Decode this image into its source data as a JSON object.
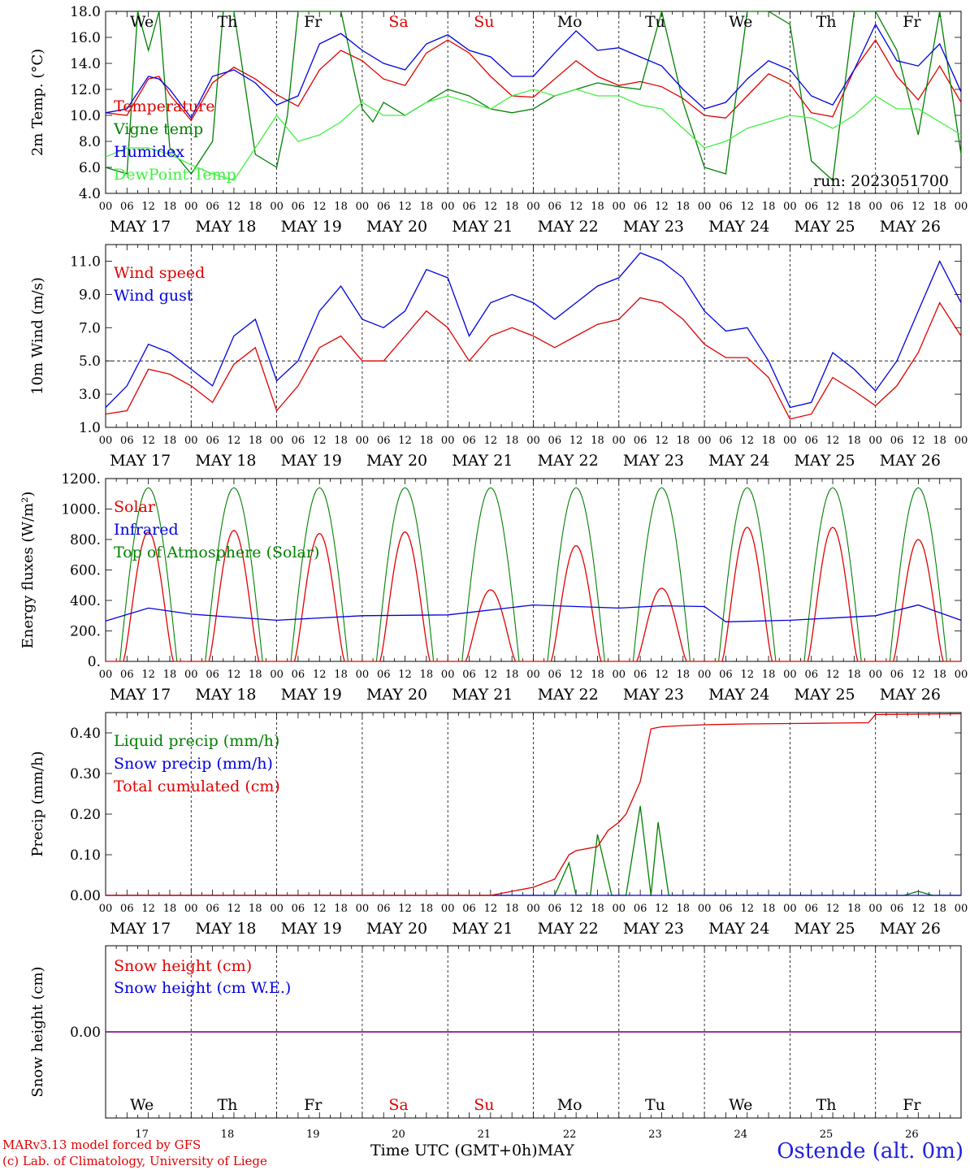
{
  "time_axis": {
    "hour_ticks": [
      "00",
      "06",
      "12",
      "18"
    ],
    "dates": [
      "MAY 17",
      "MAY 18",
      "MAY 19",
      "MAY 20",
      "MAY 21",
      "MAY 22",
      "MAY 23",
      "MAY 24",
      "MAY 25",
      "MAY 26"
    ],
    "weekdays": [
      "We",
      "Th",
      "Fr",
      "Sa",
      "Su",
      "Mo",
      "Tu",
      "We",
      "Th",
      "Fr"
    ],
    "weekday_colors": [
      "#000000",
      "#000000",
      "#000000",
      "#e00000",
      "#e00000",
      "#000000",
      "#000000",
      "#000000",
      "#000000",
      "#000000"
    ],
    "day_numbers": [
      "17",
      "18",
      "19",
      "20",
      "21",
      "22",
      "23",
      "24",
      "25",
      "26"
    ]
  },
  "footer": {
    "model_line": "MARv3.13 model forced by GFS",
    "lab_line": "(c) Lab. of Climatology, University of Liege",
    "time_label": "Time UTC (GMT+0h)",
    "month_label": "MAY",
    "station": "Ostende (alt. 0m)"
  },
  "chart_data": [
    {
      "type": "line",
      "ylabel": "2m Temp. (°C)",
      "ylim": [
        4,
        18
      ],
      "y_ticks": [
        "4.0",
        "6.0",
        "8.0",
        "10.0",
        "12.0",
        "14.0",
        "16.0",
        "18.0"
      ],
      "annotation": "run: 2023051700",
      "x_unit": "hours since 2023-05-17 00 UTC",
      "series": [
        {
          "name": "Temperature",
          "color": "#e00000",
          "x": [
            0,
            6,
            12,
            15,
            18,
            24,
            30,
            36,
            42,
            48,
            54,
            60,
            66,
            72,
            78,
            84,
            90,
            96,
            102,
            108,
            114,
            120,
            126,
            132,
            138,
            144,
            150,
            156,
            162,
            168,
            174,
            180,
            186,
            192,
            198,
            204,
            210,
            216,
            222,
            228,
            234,
            240
          ],
          "y": [
            10.2,
            10.0,
            12.8,
            13.0,
            11.6,
            9.6,
            12.5,
            13.7,
            12.8,
            11.6,
            10.7,
            13.5,
            15.0,
            14.2,
            12.8,
            12.3,
            14.8,
            15.8,
            14.8,
            13.0,
            11.5,
            11.4,
            12.8,
            14.2,
            13.0,
            12.3,
            12.6,
            12.2,
            11.3,
            10.0,
            9.8,
            11.5,
            13.2,
            12.4,
            10.2,
            9.9,
            13.5,
            15.8,
            13.0,
            11.2,
            13.8,
            11.0
          ]
        },
        {
          "name": "Vigne temp",
          "color": "#008000",
          "x": [
            0,
            6,
            9,
            12,
            15,
            18,
            24,
            30,
            33,
            36,
            42,
            48,
            51,
            54,
            57,
            60,
            66,
            72,
            75,
            78,
            84,
            90,
            96,
            102,
            108,
            114,
            120,
            126,
            132,
            138,
            144,
            150,
            156,
            162,
            168,
            174,
            180,
            186,
            192,
            198,
            204,
            210,
            216,
            222,
            228,
            234,
            240
          ],
          "y": [
            6.0,
            5.5,
            18.0,
            15.0,
            18.0,
            7.5,
            5.5,
            8.0,
            18.0,
            18.0,
            7.0,
            6.0,
            10.0,
            18.0,
            18.0,
            18.0,
            18.0,
            10.5,
            9.5,
            11.0,
            10.0,
            11.0,
            12.0,
            11.5,
            10.5,
            10.2,
            10.5,
            11.5,
            12.0,
            12.5,
            12.2,
            12.0,
            18.0,
            11.0,
            6.0,
            5.5,
            18.0,
            18.0,
            17.0,
            6.5,
            5.0,
            18.0,
            18.0,
            15.0,
            8.5,
            18.0,
            7.0
          ]
        },
        {
          "name": "Humidex",
          "color": "#0000e0",
          "x": [
            0,
            6,
            12,
            15,
            18,
            24,
            30,
            36,
            42,
            48,
            54,
            60,
            66,
            72,
            78,
            84,
            90,
            96,
            102,
            108,
            114,
            120,
            126,
            132,
            138,
            144,
            150,
            156,
            162,
            168,
            174,
            180,
            186,
            192,
            198,
            204,
            210,
            216,
            222,
            228,
            234,
            240
          ],
          "y": [
            10.2,
            10.5,
            13.0,
            12.8,
            12.0,
            9.8,
            13.0,
            13.5,
            12.5,
            10.8,
            11.5,
            15.5,
            16.3,
            15.0,
            14.0,
            13.5,
            15.5,
            16.2,
            15.0,
            14.5,
            13.0,
            13.0,
            14.8,
            16.5,
            15.0,
            15.2,
            14.5,
            13.8,
            12.0,
            10.5,
            11.0,
            12.8,
            14.2,
            13.5,
            11.5,
            10.8,
            13.5,
            17.0,
            14.2,
            13.8,
            15.5,
            11.8
          ]
        },
        {
          "name": "DewPoint Temp",
          "color": "#40f040",
          "x": [
            0,
            6,
            12,
            18,
            24,
            30,
            36,
            42,
            48,
            54,
            60,
            66,
            72,
            78,
            84,
            90,
            96,
            102,
            108,
            114,
            120,
            126,
            132,
            138,
            144,
            150,
            156,
            162,
            168,
            174,
            180,
            186,
            192,
            198,
            204,
            210,
            216,
            222,
            228,
            234,
            240
          ],
          "y": [
            6.8,
            7.5,
            7.5,
            7.0,
            6.2,
            5.5,
            5.0,
            7.5,
            10.0,
            8.0,
            8.5,
            9.5,
            11.0,
            10.0,
            10.0,
            11.0,
            11.5,
            11.0,
            10.5,
            11.5,
            12.0,
            11.5,
            12.0,
            11.5,
            11.5,
            10.8,
            10.5,
            9.0,
            7.5,
            8.0,
            9.0,
            9.5,
            10.0,
            9.8,
            9.0,
            10.0,
            11.5,
            10.5,
            10.5,
            9.5,
            8.5
          ]
        }
      ]
    },
    {
      "type": "line",
      "ylabel": "10m Wind (m/s)",
      "ylim": [
        1,
        12
      ],
      "y_ticks": [
        "1.0",
        "3.0",
        "5.0",
        "7.0",
        "9.0",
        "11.0"
      ],
      "reference_line": 5.0,
      "x_unit": "hours since 2023-05-17 00 UTC",
      "series": [
        {
          "name": "Wind speed",
          "color": "#e00000",
          "x": [
            0,
            6,
            12,
            18,
            24,
            30,
            36,
            42,
            48,
            54,
            60,
            66,
            72,
            78,
            84,
            90,
            96,
            102,
            108,
            114,
            120,
            126,
            132,
            138,
            144,
            150,
            156,
            162,
            168,
            174,
            180,
            186,
            192,
            198,
            204,
            210,
            216,
            222,
            228,
            234,
            240
          ],
          "y": [
            1.8,
            2.0,
            4.5,
            4.2,
            3.5,
            2.5,
            4.8,
            5.8,
            2.0,
            3.5,
            5.8,
            6.5,
            5.0,
            5.0,
            6.5,
            8.0,
            7.0,
            5.0,
            6.5,
            7.0,
            6.5,
            5.8,
            6.5,
            7.2,
            7.5,
            8.8,
            8.5,
            7.5,
            6.0,
            5.2,
            5.2,
            4.0,
            1.5,
            1.8,
            4.0,
            3.2,
            2.3,
            3.5,
            5.5,
            8.5,
            6.5
          ]
        },
        {
          "name": "Wind gust",
          "color": "#0000e0",
          "x": [
            0,
            6,
            12,
            18,
            24,
            30,
            36,
            42,
            48,
            54,
            60,
            66,
            72,
            78,
            84,
            90,
            96,
            102,
            108,
            114,
            120,
            126,
            132,
            138,
            144,
            150,
            156,
            162,
            168,
            174,
            180,
            186,
            192,
            198,
            204,
            210,
            216,
            222,
            228,
            234,
            240
          ],
          "y": [
            2.2,
            3.5,
            6.0,
            5.5,
            4.5,
            3.5,
            6.5,
            7.5,
            3.8,
            5.0,
            8.0,
            9.5,
            7.5,
            7.0,
            8.0,
            10.5,
            10.0,
            6.5,
            8.5,
            9.0,
            8.5,
            7.5,
            8.5,
            9.5,
            10.0,
            11.5,
            11.0,
            10.0,
            8.0,
            6.8,
            7.0,
            5.0,
            2.2,
            2.5,
            5.5,
            4.5,
            3.2,
            5.0,
            8.0,
            11.0,
            8.5
          ]
        }
      ]
    },
    {
      "type": "line",
      "ylabel": "Energy fluxes (W/m²)",
      "ylim": [
        0,
        1200
      ],
      "y_ticks": [
        "0.",
        "200.",
        "400.",
        "600.",
        "800.",
        "1000.",
        "1200."
      ],
      "x_unit": "hours since 2023-05-17 00 UTC",
      "toa_daily": {
        "sunrise_hour": 4,
        "sunset_hour": 20,
        "peak": 1140
      },
      "series": [
        {
          "name": "Solar",
          "color": "#e00000",
          "daily_peaks": [
            850,
            860,
            840,
            850,
            470,
            760,
            480,
            880,
            880,
            800
          ]
        },
        {
          "name": "Infrared",
          "color": "#0000e0",
          "x": [
            0,
            12,
            24,
            48,
            72,
            96,
            120,
            132,
            144,
            156,
            168,
            174,
            192,
            216,
            228,
            240
          ],
          "y": [
            265,
            350,
            310,
            270,
            300,
            305,
            370,
            360,
            350,
            365,
            360,
            260,
            270,
            300,
            370,
            270
          ]
        },
        {
          "name": "Top of Atmosphere (Solar)",
          "color": "#008000"
        }
      ]
    },
    {
      "type": "line",
      "ylabel": "Precip (mm/h)",
      "ylim": [
        0,
        0.45
      ],
      "y_ticks": [
        "0.00",
        "0.10",
        "0.20",
        "0.30",
        "0.40"
      ],
      "x_unit": "hours since 2023-05-17 00 UTC",
      "series": [
        {
          "name": "Liquid precip (mm/h)",
          "color": "#008000",
          "x": [
            0,
            120,
            126,
            130,
            132,
            134,
            136,
            138,
            142,
            146,
            150,
            153,
            155,
            158,
            160,
            162,
            164,
            166,
            168,
            174,
            224,
            228,
            232,
            240
          ],
          "y": [
            0,
            0,
            0,
            0.08,
            0,
            0,
            0,
            0.15,
            0,
            0,
            0.22,
            0,
            0.18,
            0,
            0,
            0,
            0,
            0,
            0,
            0,
            0,
            0.01,
            0,
            0
          ]
        },
        {
          "name": "Snow precip (mm/h)",
          "color": "#0000e0",
          "x": [
            0,
            240
          ],
          "y": [
            0,
            0
          ]
        },
        {
          "name": "Total cumulated (cm)",
          "color": "#e00000",
          "x": [
            0,
            108,
            120,
            126,
            130,
            132,
            138,
            141,
            144,
            146,
            150,
            153,
            156,
            162,
            168,
            180,
            192,
            204,
            214,
            216,
            240
          ],
          "y": [
            0,
            0,
            0.02,
            0.04,
            0.1,
            0.11,
            0.12,
            0.16,
            0.18,
            0.2,
            0.28,
            0.41,
            0.415,
            0.418,
            0.42,
            0.422,
            0.423,
            0.424,
            0.425,
            0.445,
            0.447
          ]
        }
      ]
    },
    {
      "type": "line",
      "ylabel": "Snow height (cm)",
      "y_ticks": [
        "0.00"
      ],
      "x_unit": "hours since 2023-05-17 00 UTC",
      "series": [
        {
          "name": "Snow height (cm)",
          "color": "#e00000",
          "x": [
            0,
            240
          ],
          "y": [
            0,
            0
          ]
        },
        {
          "name": "Snow height (cm W.E.)",
          "color": "#0000e0",
          "x": [
            0,
            240
          ],
          "y": [
            0,
            0
          ]
        }
      ]
    }
  ]
}
